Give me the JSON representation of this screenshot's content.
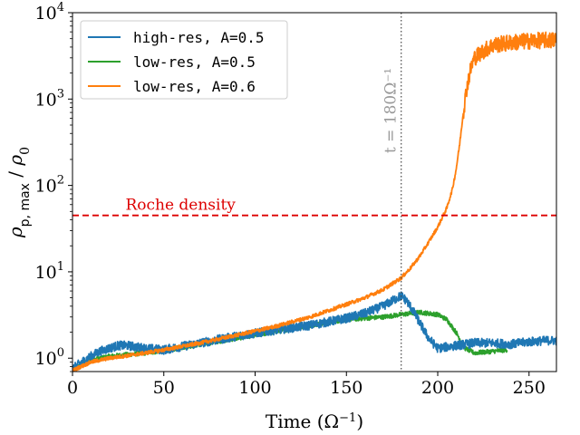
{
  "chart_data": {
    "type": "line",
    "xlabel": "Time (Ω⁻¹)",
    "ylabel": "ρp,max / ρ0",
    "xlim": [
      0,
      265
    ],
    "ylim": [
      0.7,
      10000
    ],
    "yscale": "log",
    "grid": false,
    "legend_loc": "upper left",
    "x_ticks": [
      0,
      50,
      100,
      150,
      200,
      250
    ],
    "y_ticks": [
      {
        "value": 1,
        "label": "10",
        "exp": "0"
      },
      {
        "value": 10,
        "label": "10",
        "exp": "1"
      },
      {
        "value": 100,
        "label": "10",
        "exp": "2"
      },
      {
        "value": 1000,
        "label": "10",
        "exp": "3"
      },
      {
        "value": 10000,
        "label": "10",
        "exp": "4"
      }
    ],
    "series": [
      {
        "name": "high-res, A=0.5",
        "color": "#1f77b4",
        "noise": 0.12,
        "x": [
          0,
          5,
          10,
          15,
          20,
          25,
          30,
          35,
          40,
          50,
          70,
          90,
          110,
          130,
          150,
          160,
          170,
          175,
          180,
          183,
          186,
          190,
          195,
          200,
          210,
          220,
          230,
          240,
          250,
          260,
          265
        ],
        "y": [
          0.75,
          0.9,
          1.05,
          1.2,
          1.3,
          1.4,
          1.4,
          1.35,
          1.3,
          1.25,
          1.5,
          1.8,
          2.1,
          2.4,
          2.9,
          3.3,
          4.0,
          4.6,
          5.3,
          4.6,
          3.7,
          2.6,
          1.7,
          1.3,
          1.4,
          1.5,
          1.5,
          1.45,
          1.55,
          1.6,
          1.6
        ]
      },
      {
        "name": "low-res, A=0.5",
        "color": "#2ca02c",
        "noise": 0.06,
        "x": [
          0,
          5,
          10,
          20,
          30,
          40,
          50,
          70,
          90,
          110,
          130,
          150,
          170,
          180,
          190,
          200,
          205,
          210,
          215,
          220,
          230,
          238
        ],
        "y": [
          0.72,
          0.85,
          0.95,
          1.05,
          1.1,
          1.15,
          1.22,
          1.45,
          1.7,
          2.0,
          2.4,
          2.8,
          3.0,
          3.2,
          3.4,
          3.2,
          2.8,
          2.0,
          1.3,
          1.15,
          1.2,
          1.25
        ]
      },
      {
        "name": "low-res, A=0.6",
        "color": "#ff7f0e",
        "noise": 0.05,
        "x": [
          0,
          10,
          20,
          30,
          40,
          50,
          70,
          90,
          110,
          130,
          150,
          160,
          170,
          180,
          185,
          190,
          195,
          200,
          205,
          208,
          210,
          212,
          214,
          216,
          218,
          220,
          225,
          230,
          240,
          250,
          260,
          265
        ],
        "y": [
          0.72,
          0.9,
          1.0,
          1.07,
          1.15,
          1.25,
          1.5,
          1.85,
          2.3,
          3.0,
          4.2,
          5.0,
          6.2,
          8.5,
          11,
          15,
          22,
          33,
          55,
          90,
          150,
          300,
          700,
          1400,
          2200,
          3000,
          3600,
          4200,
          4500,
          4700,
          4800,
          4800
        ]
      }
    ],
    "hlines": [
      {
        "y": 45,
        "color": "#dd0000",
        "label": "Roche density"
      }
    ],
    "vlines": [
      {
        "x": 180,
        "color": "#444444",
        "label": "t = 180Ω⁻¹"
      }
    ]
  }
}
